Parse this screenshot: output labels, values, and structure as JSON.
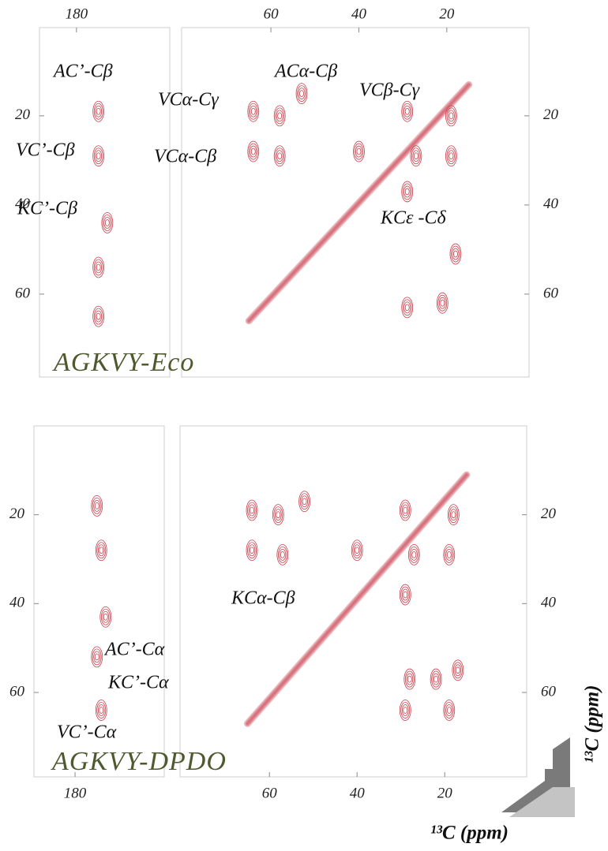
{
  "figure": {
    "axis_label": "¹³C (ppm)",
    "contour_color": "#c8404c",
    "panels": [
      {
        "label": "AGKVY-Eco",
        "annotations": [
          "AC’-Cβ",
          "VC’-Cβ",
          "KC’-Cβ",
          "VCα-Cγ",
          "VCα-Cβ",
          "ACα-Cβ",
          "VCβ-Cγ",
          "KCε -Cδ"
        ],
        "left": {
          "xlim": [
            188.4,
            158.8
          ],
          "ylim": [
            0.2,
            78.6
          ],
          "xticks": [
            180
          ],
          "yticks": [
            20,
            40,
            60
          ],
          "peaks": [
            {
              "x": 175,
              "y": 19
            },
            {
              "x": 175,
              "y": 29
            },
            {
              "x": 173,
              "y": 44
            },
            {
              "x": 175,
              "y": 54
            },
            {
              "x": 175,
              "y": 65
            }
          ]
        },
        "right": {
          "xlim": [
            80.3,
            1.3
          ],
          "ylim": [
            0.2,
            78.6
          ],
          "xticks": [
            60,
            40,
            20
          ],
          "yticks": [
            20,
            40,
            60
          ],
          "diagonal": [
            [
              65,
              66
            ],
            [
              15,
              13
            ]
          ],
          "peaks": [
            {
              "x": 64,
              "y": 19
            },
            {
              "x": 64,
              "y": 28
            },
            {
              "x": 58,
              "y": 20
            },
            {
              "x": 58,
              "y": 29
            },
            {
              "x": 53,
              "y": 15
            },
            {
              "x": 40,
              "y": 28
            },
            {
              "x": 29,
              "y": 19
            },
            {
              "x": 27,
              "y": 29
            },
            {
              "x": 19,
              "y": 20
            },
            {
              "x": 19,
              "y": 29
            },
            {
              "x": 18,
              "y": 51
            },
            {
              "x": 29,
              "y": 63
            },
            {
              "x": 21,
              "y": 62
            },
            {
              "x": 29,
              "y": 37
            }
          ]
        }
      },
      {
        "label": "AGKVY-DPDO",
        "annotations": [
          "KCα-Cβ",
          "AC’-Cα",
          "KC’-Cα",
          "VC’-Cα"
        ],
        "left": {
          "xlim": [
            189.4,
            159.6
          ],
          "ylim": [
            0,
            79
          ],
          "xticks": [
            180
          ],
          "yticks": [
            20,
            40,
            60
          ],
          "peaks": [
            {
              "x": 175,
              "y": 18
            },
            {
              "x": 174,
              "y": 28
            },
            {
              "x": 173,
              "y": 43
            },
            {
              "x": 175,
              "y": 52
            },
            {
              "x": 174,
              "y": 64
            }
          ]
        },
        "right": {
          "xlim": [
            80.4,
            1.3
          ],
          "ylim": [
            0,
            79
          ],
          "xticks": [
            60,
            40,
            20
          ],
          "yticks": [
            20,
            40,
            60
          ],
          "diagonal": [
            [
              65,
              67
            ],
            [
              15,
              11
            ]
          ],
          "peaks": [
            {
              "x": 64,
              "y": 19
            },
            {
              "x": 64,
              "y": 28
            },
            {
              "x": 58,
              "y": 20
            },
            {
              "x": 57,
              "y": 29
            },
            {
              "x": 52,
              "y": 17
            },
            {
              "x": 40,
              "y": 28
            },
            {
              "x": 29,
              "y": 19
            },
            {
              "x": 27,
              "y": 29
            },
            {
              "x": 18,
              "y": 20
            },
            {
              "x": 19,
              "y": 29
            },
            {
              "x": 17,
              "y": 55
            },
            {
              "x": 29,
              "y": 64
            },
            {
              "x": 19,
              "y": 64
            },
            {
              "x": 29,
              "y": 38
            },
            {
              "x": 28,
              "y": 57
            },
            {
              "x": 22,
              "y": 57
            }
          ]
        }
      }
    ]
  }
}
